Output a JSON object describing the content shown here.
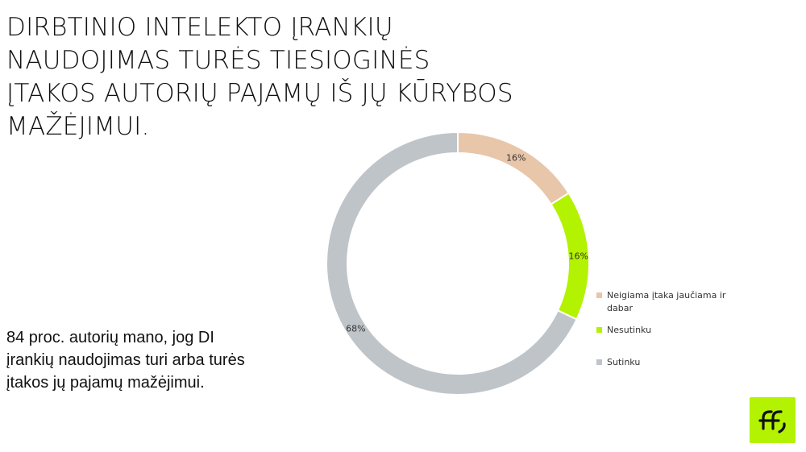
{
  "title": "DIRBTINIO INTELEKTO ĮRANKIŲ\nNAUDOJIMAS TURĖS TIESIOGINĖS\nĮTAKOS AUTORIŲ PAJAMŲ IŠ JŲ KŪRYBOS\nMAŽĖJIMUI.",
  "summary": "84 proc. autorių mano, jog DI\nįrankių naudojimas turi arba turės\nįtakos jų pajamų mažėjimui.",
  "logo": {
    "icon": "ff-logo-icon",
    "background": "#b3f200",
    "mark_color": "#111111"
  },
  "chart_data": {
    "type": "pie",
    "donut": true,
    "title": "",
    "categories": [
      "Neigiama įtaka jaučiama ir dabar",
      "Nesutinku",
      "Sutinku"
    ],
    "values": [
      16,
      16,
      68
    ],
    "labels": [
      "16%",
      "16%",
      "68%"
    ],
    "colors": [
      "#e8c6aa",
      "#b3f200",
      "#bfc4c9"
    ],
    "unit": "%",
    "legend_position": "right"
  }
}
